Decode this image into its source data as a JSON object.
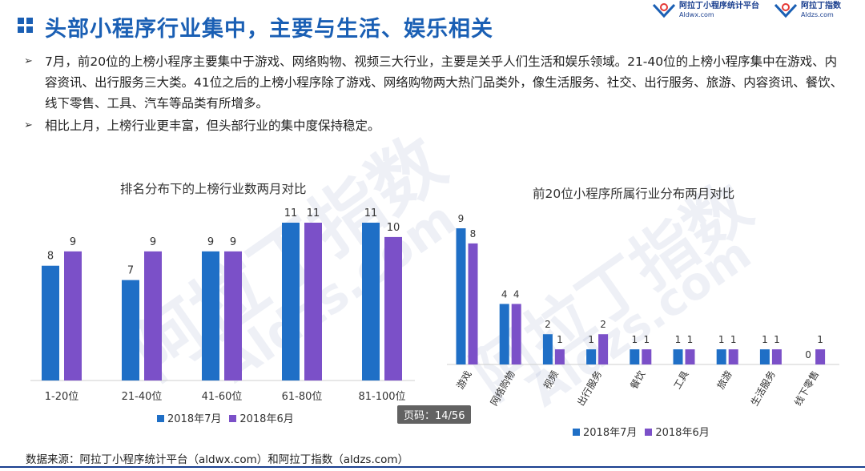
{
  "header": {
    "title": "头部小程序行业集中，主要与生活、娱乐相关",
    "logos": [
      {
        "name": "阿拉丁小程序统计平台",
        "url": "Aldwx.com"
      },
      {
        "name": "阿拉丁指数",
        "url": "Aldzs.com"
      }
    ]
  },
  "bullets": [
    "7月，前20位的上榜小程序主要集中于游戏、网络购物、视频三大行业，主要是关乎人们生活和娱乐领域。21-40位的上榜小程序集中在游戏、内容资讯、出行服务三大类。41位之后的上榜小程序除了游戏、网络购物两大热门品类外，像生活服务、社交、出行服务、旅游、内容资讯、餐饮、线下零售、工具、汽车等品类有所增多。",
    "相比上月，上榜行业更丰富，但头部行业的集中度保持稳定。"
  ],
  "watermark": {
    "text1": "阿拉丁指数",
    "text2": "Aldzs.com"
  },
  "page_badge": "页码：14/56",
  "footer": {
    "source": "数据来源：阿拉丁小程序统计平台（aldwx.com）和阿拉丁指数（aldzs.com）"
  },
  "colors": {
    "july": "#1f6fc6",
    "june": "#7b50c8",
    "title": "#1a5fb4"
  },
  "chart_data": [
    {
      "type": "bar",
      "title": "排名分布下的上榜行业数两月对比",
      "categories": [
        "1-20位",
        "21-40位",
        "41-60位",
        "61-80位",
        "81-100位"
      ],
      "series": [
        {
          "name": "2018年7月",
          "values": [
            8,
            7,
            9,
            11,
            11
          ]
        },
        {
          "name": "2018年6月",
          "values": [
            9,
            9,
            9,
            11,
            10
          ]
        }
      ],
      "ylim": [
        0,
        12
      ],
      "legend": "bottom"
    },
    {
      "type": "bar",
      "title": "前20位小程序所属行业分布两月对比",
      "categories": [
        "游戏",
        "网络购物",
        "视频",
        "出行服务",
        "餐饮",
        "工具",
        "旅游",
        "生活服务",
        "线下零售"
      ],
      "series": [
        {
          "name": "2018年7月",
          "values": [
            9,
            4,
            2,
            1,
            1,
            1,
            1,
            1,
            0
          ]
        },
        {
          "name": "2018年6月",
          "values": [
            8,
            4,
            1,
            2,
            1,
            1,
            1,
            1,
            1
          ]
        }
      ],
      "ylim": [
        0,
        10
      ],
      "legend": "bottom"
    }
  ]
}
